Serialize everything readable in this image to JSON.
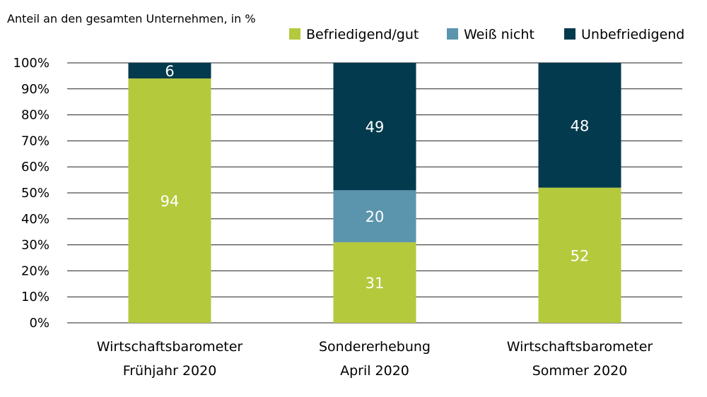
{
  "chart_data": {
    "type": "bar",
    "stacked": true,
    "ylabel": "Anteil an den gesamten Unternehmen, in %",
    "categories": [
      [
        "Wirtschaftsbarometer",
        "Frühjahr 2020"
      ],
      [
        "Sondererhebung",
        "April 2020"
      ],
      [
        "Wirtschaftsbarometer",
        "Sommer 2020"
      ]
    ],
    "series": [
      {
        "name": "Befriedigend/gut",
        "color": "#b5c93d",
        "values": [
          94,
          31,
          52
        ]
      },
      {
        "name": "Weiß nicht",
        "color": "#5a95ad",
        "values": [
          0,
          20,
          0
        ]
      },
      {
        "name": "Unbefriedigend",
        "color": "#033a4d",
        "values": [
          6,
          49,
          48
        ]
      }
    ],
    "ylim": [
      0,
      100
    ],
    "yticks": [
      0,
      10,
      20,
      30,
      40,
      50,
      60,
      70,
      80,
      90,
      100
    ],
    "ytick_suffix": "%",
    "grid": true,
    "legend_position": "top-right"
  }
}
